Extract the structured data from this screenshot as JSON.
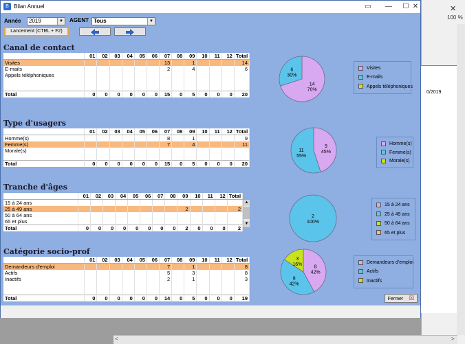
{
  "window": {
    "title": "Bilan Annuel"
  },
  "toolbar": {
    "annee_label": "Année",
    "annee_value": "2019",
    "agent_label": "AGENT",
    "agent_value": "Tous",
    "launch_label": "Lancement (CTRL + F2)",
    "prev_icon": "arrow-left-icon",
    "next_icon": "arrow-right-icon"
  },
  "background_app": {
    "zoom": "100 %",
    "date_fragment": "0/2019"
  },
  "months": [
    "01",
    "02",
    "03",
    "04",
    "05",
    "06",
    "07",
    "08",
    "09",
    "10",
    "11",
    "12",
    "Total"
  ],
  "colors": {
    "blue": "#5bc4ea",
    "violet": "#d8a8f0",
    "green": "#c8e21c",
    "orange": "#f9b87d"
  },
  "sections": [
    {
      "title": "Canal de contact",
      "rows": [
        {
          "label": "Visites",
          "cells": [
            "",
            "",
            "",
            "",
            "",
            "",
            "13",
            "",
            "1",
            "",
            "",
            "",
            "14"
          ],
          "highlight": true
        },
        {
          "label": "E-mails",
          "cells": [
            "",
            "",
            "",
            "",
            "",
            "",
            "2",
            "",
            "4",
            "",
            "",
            "",
            "6"
          ],
          "highlight": false
        },
        {
          "label": "Appels téléphoniques",
          "cells": [
            "",
            "",
            "",
            "",
            "",
            "",
            "",
            "",
            "",
            "",
            "",
            "",
            ""
          ],
          "highlight": false
        }
      ],
      "total": {
        "label": "Total",
        "cells": [
          "0",
          "0",
          "0",
          "0",
          "0",
          "0",
          "15",
          "0",
          "5",
          "0",
          "0",
          "0",
          "20"
        ]
      },
      "pie": [
        {
          "value": 14,
          "label": "14",
          "pct": "70%",
          "color": "#d8a8f0"
        },
        {
          "value": 6,
          "label": "6",
          "pct": "30%",
          "color": "#5bc4ea"
        }
      ],
      "legend": [
        {
          "label": "Visites",
          "color": "#d8a8f0"
        },
        {
          "label": "E-mails",
          "color": "#5bc4ea"
        },
        {
          "label": "Appels téléphoniques",
          "color": "#c8e21c"
        }
      ]
    },
    {
      "title": "Type d'usagers",
      "rows": [
        {
          "label": "Homme(s)",
          "cells": [
            "",
            "",
            "",
            "",
            "",
            "",
            "8",
            "",
            "1",
            "",
            "",
            "",
            "9"
          ],
          "highlight": false
        },
        {
          "label": "Femme(s)",
          "cells": [
            "",
            "",
            "",
            "",
            "",
            "",
            "7",
            "",
            "4",
            "",
            "",
            "",
            "11"
          ],
          "highlight": true
        },
        {
          "label": "Morale(s)",
          "cells": [
            "",
            "",
            "",
            "",
            "",
            "",
            "",
            "",
            "",
            "",
            "",
            "",
            ""
          ],
          "highlight": false
        }
      ],
      "total": {
        "label": "Total",
        "cells": [
          "0",
          "0",
          "0",
          "0",
          "0",
          "0",
          "15",
          "0",
          "5",
          "0",
          "0",
          "0",
          "20"
        ]
      },
      "pie": [
        {
          "value": 9,
          "label": "9",
          "pct": "45%",
          "color": "#d8a8f0"
        },
        {
          "value": 11,
          "label": "11",
          "pct": "55%",
          "color": "#5bc4ea"
        }
      ],
      "legend": [
        {
          "label": "Homme(s)",
          "color": "#d8a8f0"
        },
        {
          "label": "Femme(s)",
          "color": "#5bc4ea"
        },
        {
          "label": "Morale(s)",
          "color": "#c8e21c"
        }
      ]
    },
    {
      "title": "Tranche d'âges",
      "rows": [
        {
          "label": "15 à 24 ans",
          "cells": [
            "",
            "",
            "",
            "",
            "",
            "",
            "",
            "",
            "",
            "",
            "",
            "",
            ""
          ],
          "highlight": false
        },
        {
          "label": "25 à 49 ans",
          "cells": [
            "",
            "",
            "",
            "",
            "",
            "",
            "",
            "",
            "2",
            "",
            "",
            "",
            "2"
          ],
          "highlight": true
        },
        {
          "label": "50 à 64 ans",
          "cells": [
            "",
            "",
            "",
            "",
            "",
            "",
            "",
            "",
            "",
            "",
            "",
            "",
            ""
          ],
          "highlight": false
        },
        {
          "label": "65 et plus",
          "cells": [
            "",
            "",
            "",
            "",
            "",
            "",
            "",
            "",
            "",
            "",
            "",
            "",
            ""
          ],
          "highlight": false
        }
      ],
      "total": {
        "label": "Total",
        "cells": [
          "0",
          "0",
          "0",
          "0",
          "0",
          "0",
          "0",
          "0",
          "2",
          "0",
          "0",
          "0",
          "2"
        ]
      },
      "pie": [
        {
          "value": 2,
          "label": "2",
          "pct": "100%",
          "color": "#5bc4ea"
        }
      ],
      "legend": [
        {
          "label": "15 à 24 ans",
          "color": "#d8a8f0"
        },
        {
          "label": "25 à 49 ans",
          "color": "#5bc4ea"
        },
        {
          "label": "50 à 64 ans",
          "color": "#c8e21c"
        },
        {
          "label": "65 et plus",
          "color": "#f9b87d"
        }
      ]
    },
    {
      "title": "Catégorie socio-prof",
      "rows": [
        {
          "label": "Demandeurs d'emploi",
          "cells": [
            "",
            "",
            "",
            "",
            "",
            "",
            "7",
            "",
            "1",
            "",
            "",
            "",
            "8"
          ],
          "highlight": true
        },
        {
          "label": "Actifs",
          "cells": [
            "",
            "",
            "",
            "",
            "",
            "",
            "5",
            "",
            "3",
            "",
            "",
            "",
            "8"
          ],
          "highlight": false
        },
        {
          "label": "Inactifs",
          "cells": [
            "",
            "",
            "",
            "",
            "",
            "",
            "2",
            "",
            "1",
            "",
            "",
            "",
            "3"
          ],
          "highlight": false
        }
      ],
      "total": {
        "label": "Total",
        "cells": [
          "0",
          "0",
          "0",
          "0",
          "0",
          "0",
          "14",
          "0",
          "5",
          "0",
          "0",
          "0",
          "19"
        ]
      },
      "pie": [
        {
          "value": 8,
          "label": "8",
          "pct": "42%",
          "color": "#d8a8f0"
        },
        {
          "value": 8,
          "label": "8",
          "pct": "42%",
          "color": "#5bc4ea"
        },
        {
          "value": 3,
          "label": "3",
          "pct": "16%",
          "color": "#c8e21c"
        }
      ],
      "legend": [
        {
          "label": "Demandeurs d'emploi",
          "color": "#d8a8f0"
        },
        {
          "label": "Actifs",
          "color": "#5bc4ea"
        },
        {
          "label": "Inactifs",
          "color": "#c8e21c"
        }
      ]
    }
  ],
  "footer": {
    "close_label": "Fermer"
  }
}
